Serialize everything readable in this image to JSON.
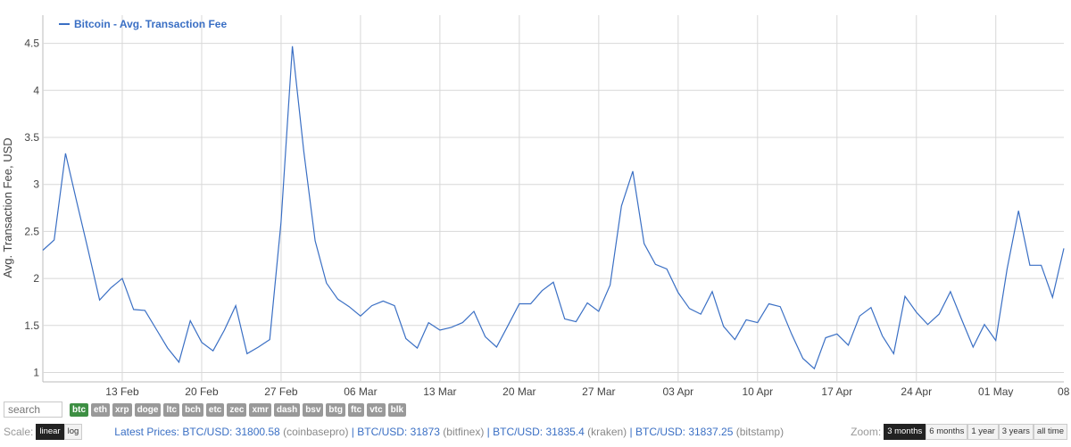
{
  "chart_data": {
    "type": "line",
    "ylabel": "Avg. Transaction Fee, USD",
    "ylim": [
      0.9,
      4.8
    ],
    "yticks": [
      1,
      1.5,
      2,
      2.5,
      3,
      3.5,
      4,
      4.5
    ],
    "ytick_labels": [
      "1",
      "1.5",
      "2",
      "2.5",
      "3",
      "3.5",
      "4",
      "4.5"
    ],
    "xticks": [
      {
        "label": "13 Feb",
        "index": 7
      },
      {
        "label": "20 Feb",
        "index": 14
      },
      {
        "label": "27 Feb",
        "index": 21
      },
      {
        "label": "06 Mar",
        "index": 28
      },
      {
        "label": "13 Mar",
        "index": 35
      },
      {
        "label": "20 Mar",
        "index": 42
      },
      {
        "label": "27 Mar",
        "index": 49
      },
      {
        "label": "03 Apr",
        "index": 56
      },
      {
        "label": "10 Apr",
        "index": 63
      },
      {
        "label": "17 Apr",
        "index": 70
      },
      {
        "label": "24 Apr",
        "index": 77
      },
      {
        "label": "01 May",
        "index": 84
      },
      {
        "label": "08 May",
        "index": 91
      }
    ],
    "series": [
      {
        "name": "Bitcoin - Avg. Transaction Fee",
        "color": "#3a6fc4",
        "values": [
          2.3,
          2.41,
          3.33,
          2.81,
          2.3,
          1.77,
          1.9,
          2.0,
          1.67,
          1.66,
          1.46,
          1.26,
          1.11,
          1.55,
          1.32,
          1.23,
          1.45,
          1.71,
          1.2,
          1.27,
          1.35,
          2.6,
          4.47,
          3.35,
          2.4,
          1.95,
          1.78,
          1.7,
          1.6,
          1.71,
          1.76,
          1.71,
          1.36,
          1.26,
          1.53,
          1.45,
          1.48,
          1.53,
          1.65,
          1.38,
          1.27,
          1.5,
          1.73,
          1.73,
          1.87,
          1.96,
          1.57,
          1.54,
          1.74,
          1.65,
          1.93,
          2.77,
          3.14,
          2.37,
          2.15,
          2.1,
          1.85,
          1.68,
          1.62,
          1.86,
          1.49,
          1.35,
          1.56,
          1.53,
          1.73,
          1.7,
          1.41,
          1.15,
          1.04,
          1.37,
          1.41,
          1.29,
          1.6,
          1.69,
          1.39,
          1.2,
          1.81,
          1.64,
          1.51,
          1.62,
          1.86,
          1.56,
          1.27,
          1.51,
          1.34,
          2.1,
          2.72,
          2.14,
          2.14,
          1.8,
          2.32
        ]
      }
    ],
    "grid": true,
    "legend": "top-left"
  },
  "legend_label": "Bitcoin - Avg. Transaction Fee",
  "colors": {
    "series": "#3a6fc4",
    "grid": "#d8d8d8",
    "active_coin": "#3d8f43",
    "coin": "#999999"
  },
  "search": {
    "placeholder": "search"
  },
  "coins": [
    "btc",
    "eth",
    "xrp",
    "doge",
    "ltc",
    "bch",
    "etc",
    "zec",
    "xmr",
    "dash",
    "bsv",
    "btg",
    "ftc",
    "vtc",
    "blk"
  ],
  "active_coin": "btc",
  "scale": {
    "label": "Scale:",
    "options": [
      "linear",
      "log"
    ],
    "active": "linear"
  },
  "prices": {
    "label": "Latest Prices:",
    "items": [
      {
        "text": "BTC/USD: 31800.58",
        "source": "(coinbasepro)"
      },
      {
        "text": "BTC/USD: 31873",
        "source": "(bitfinex)"
      },
      {
        "text": "BTC/USD: 31835.4",
        "source": "(kraken)"
      },
      {
        "text": "BTC/USD: 31837.25",
        "source": "(bitstamp)"
      }
    ]
  },
  "zoom": {
    "label": "Zoom:",
    "options": [
      "3 months",
      "6 months",
      "1 year",
      "3 years",
      "all time"
    ],
    "active": "3 months"
  }
}
